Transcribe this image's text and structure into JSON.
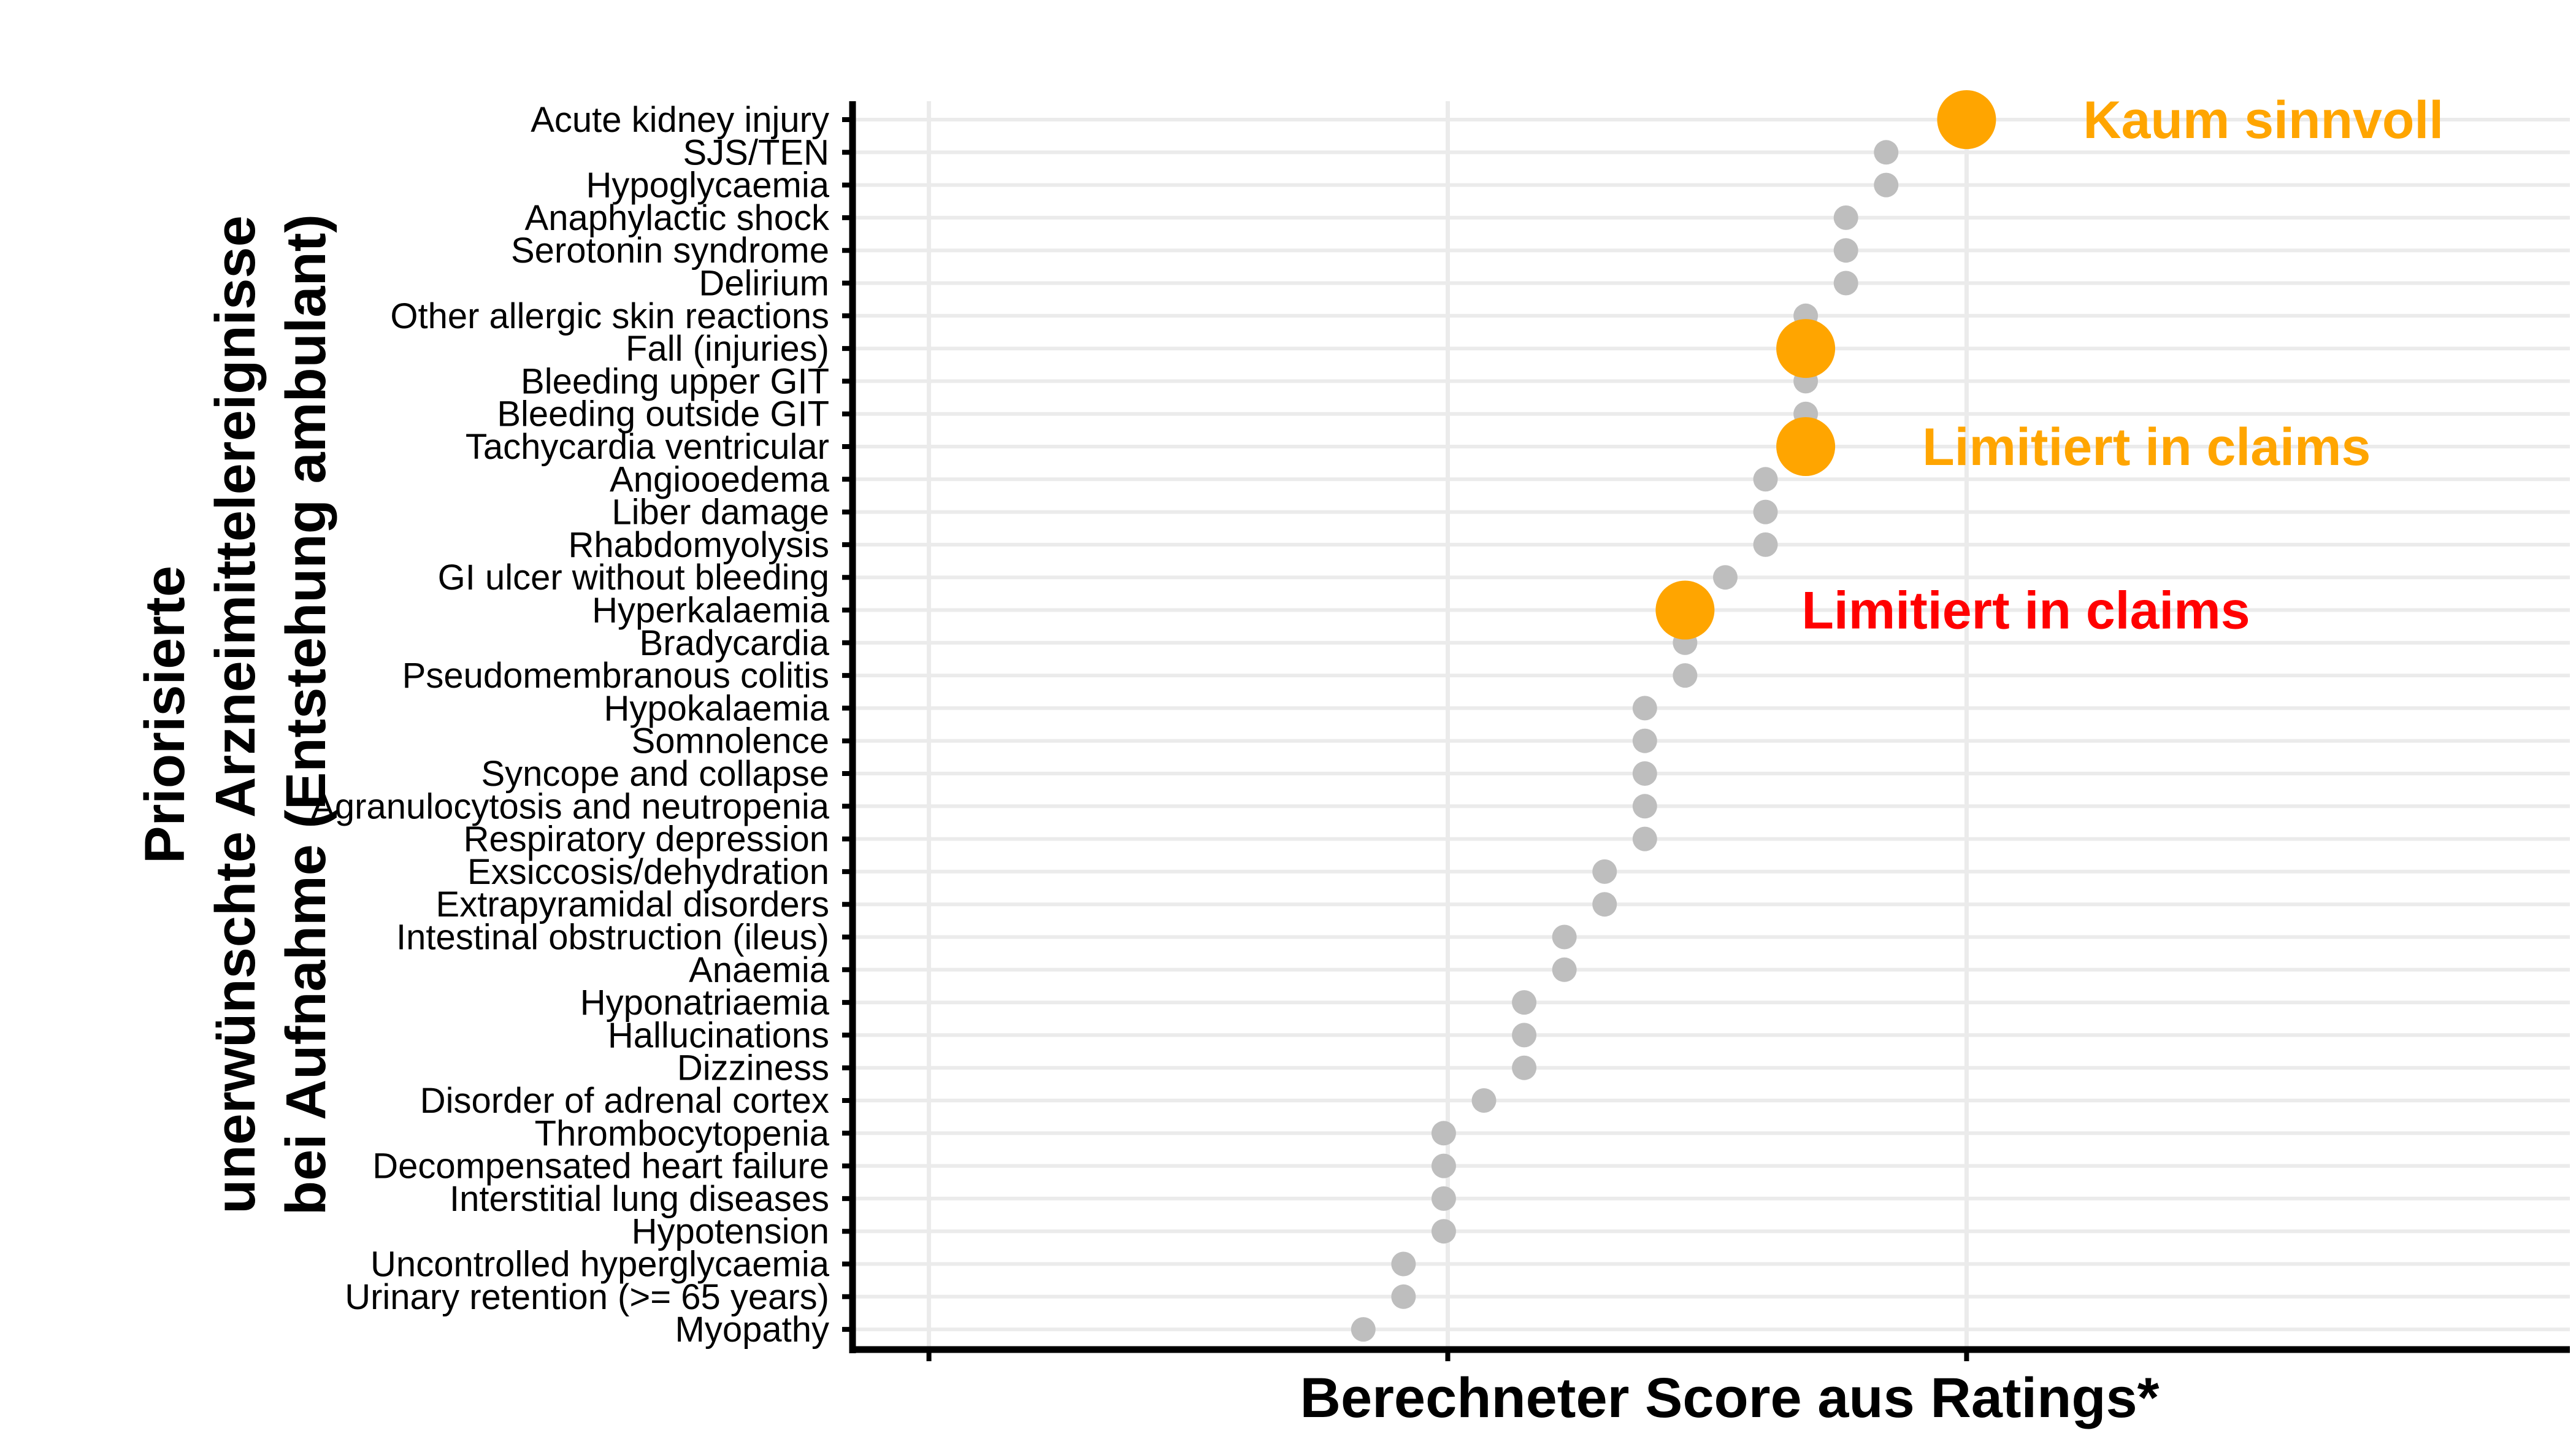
{
  "chart_data": {
    "type": "scatter",
    "xlabel": "Berechneter Score aus Ratings*",
    "ylabel_lines": [
      "Priorisierte",
      "unerwünschte Arzneimittelereignisse",
      "bei Aufnahme (Entstehung ambulant)"
    ],
    "xlim": [
      0.63,
      4.9
    ],
    "x_major_grid": [
      0.82,
      2.11,
      3.4
    ],
    "x_ticks_unlabeled": [
      0.82,
      2.11,
      3.4
    ],
    "grid": true,
    "categories": [
      "Acute kidney injury",
      "SJS/TEN",
      "Hypoglycaemia",
      "Anaphylactic shock",
      "Serotonin syndrome",
      "Delirium",
      "Other allergic skin reactions",
      "Fall (injuries)",
      "Bleeding upper GIT",
      "Bleeding outside GIT",
      "Tachycardia ventricular",
      "Angiooedema",
      "Liber damage",
      "Rhabdomyolysis",
      "GI ulcer without bleeding",
      "Hyperkalaemia",
      "Bradycardia",
      "Pseudomembranous colitis",
      "Hypokalaemia",
      "Somnolence",
      "Syncope and collapse",
      "Agranulocytosis and neutropenia",
      "Respiratory depression",
      "Exsiccosis/dehydration",
      "Extrapyramidal disorders",
      "Intestinal obstruction (ileus)",
      "Anaemia",
      "Hyponatriaemia",
      "Hallucinations",
      "Dizziness",
      "Disorder of adrenal cortex",
      "Thrombocytopenia",
      "Decompensated heart failure",
      "Interstitial lung diseases",
      "Hypotension",
      "Uncontrolled hyperglycaemia",
      "Urinary retention (>= 65 years)",
      "Myopathy"
    ],
    "values": [
      3.4,
      3.2,
      3.2,
      3.1,
      3.1,
      3.1,
      3.0,
      3.0,
      3.0,
      3.0,
      3.0,
      2.9,
      2.9,
      2.9,
      2.8,
      2.7,
      2.7,
      2.7,
      2.6,
      2.6,
      2.6,
      2.6,
      2.6,
      2.5,
      2.5,
      2.4,
      2.4,
      2.3,
      2.3,
      2.3,
      2.2,
      2.1,
      2.1,
      2.1,
      2.1,
      2.0,
      2.0,
      1.9
    ],
    "highlighted": [
      {
        "category": "Acute kidney injury",
        "label": "Kaum sinnvoll",
        "label_color": "#FFA500"
      },
      {
        "category": "Fall (injuries)",
        "label": "",
        "label_color": "#FFA500"
      },
      {
        "category": "Tachycardia ventricular",
        "label": "Limitiert in claims",
        "label_color": "#FFA500"
      },
      {
        "category": "Hyperkalaemia",
        "label": "Limitiert in claims",
        "label_color": "#FF0000"
      }
    ],
    "colors": {
      "point": "#BEBEBE",
      "highlight_point": "#FFA500",
      "grid": "#EBEBEB",
      "axis": "#000000"
    }
  }
}
